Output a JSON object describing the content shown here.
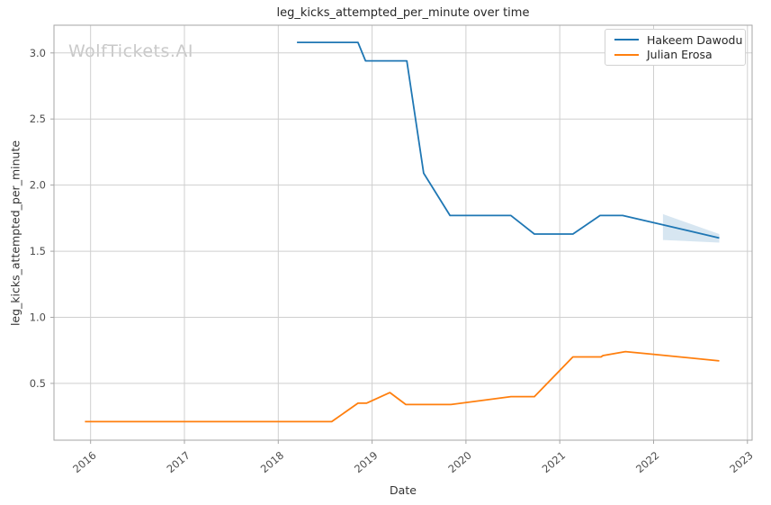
{
  "chart_data": {
    "type": "line",
    "title": "leg_kicks_attempted_per_minute over time",
    "xlabel": "Date",
    "ylabel": "leg_kicks_attempted_per_minute",
    "watermark": "WolfTickets.AI",
    "legend_position": "upper right",
    "grid": true,
    "grid_color": "#cfcfcf",
    "spine_color": "#a6a6a6",
    "tick_color": "#4d4d4d",
    "title_color": "#262626",
    "watermark_color": "#c9c9c9",
    "xlim": [
      2015.61,
      2023.05
    ],
    "ylim": [
      0.07,
      3.21
    ],
    "x_ticks": [
      2016,
      2017,
      2018,
      2019,
      2020,
      2021,
      2022,
      2023
    ],
    "y_ticks": [
      0.5,
      1.0,
      1.5,
      2.0,
      2.5,
      3.0
    ],
    "x_axis_unit": "year (decimal)",
    "series": [
      {
        "name": "Hakeem Dawodu",
        "color": "#1f77b4",
        "points": [
          [
            2018.2,
            3.08
          ],
          [
            2018.85,
            3.08
          ],
          [
            2018.93,
            2.94
          ],
          [
            2019.37,
            2.94
          ],
          [
            2019.55,
            2.09
          ],
          [
            2019.83,
            1.77
          ],
          [
            2020.48,
            1.77
          ],
          [
            2020.73,
            1.63
          ],
          [
            2021.14,
            1.63
          ],
          [
            2021.43,
            1.77
          ],
          [
            2021.67,
            1.77
          ],
          [
            2022.1,
            1.7
          ],
          [
            2022.7,
            1.6
          ]
        ]
      },
      {
        "name": "Julian Erosa",
        "color": "#ff7f0e",
        "points": [
          [
            2015.94,
            0.21
          ],
          [
            2018.57,
            0.21
          ],
          [
            2018.85,
            0.35
          ],
          [
            2018.94,
            0.35
          ],
          [
            2019.19,
            0.43
          ],
          [
            2019.36,
            0.34
          ],
          [
            2019.84,
            0.34
          ],
          [
            2020.48,
            0.4
          ],
          [
            2020.73,
            0.4
          ],
          [
            2021.14,
            0.7
          ],
          [
            2021.44,
            0.7
          ],
          [
            2021.46,
            0.71
          ],
          [
            2021.7,
            0.74
          ],
          [
            2022.0,
            0.72
          ],
          [
            2022.7,
            0.67
          ]
        ]
      }
    ],
    "confidence_band": {
      "series": "Hakeem Dawodu",
      "color": "#1f77b4",
      "opacity": 0.18,
      "x": [
        2022.1,
        2022.7
      ],
      "upper": [
        1.78,
        1.63
      ],
      "lower": [
        1.585,
        1.565
      ]
    }
  }
}
